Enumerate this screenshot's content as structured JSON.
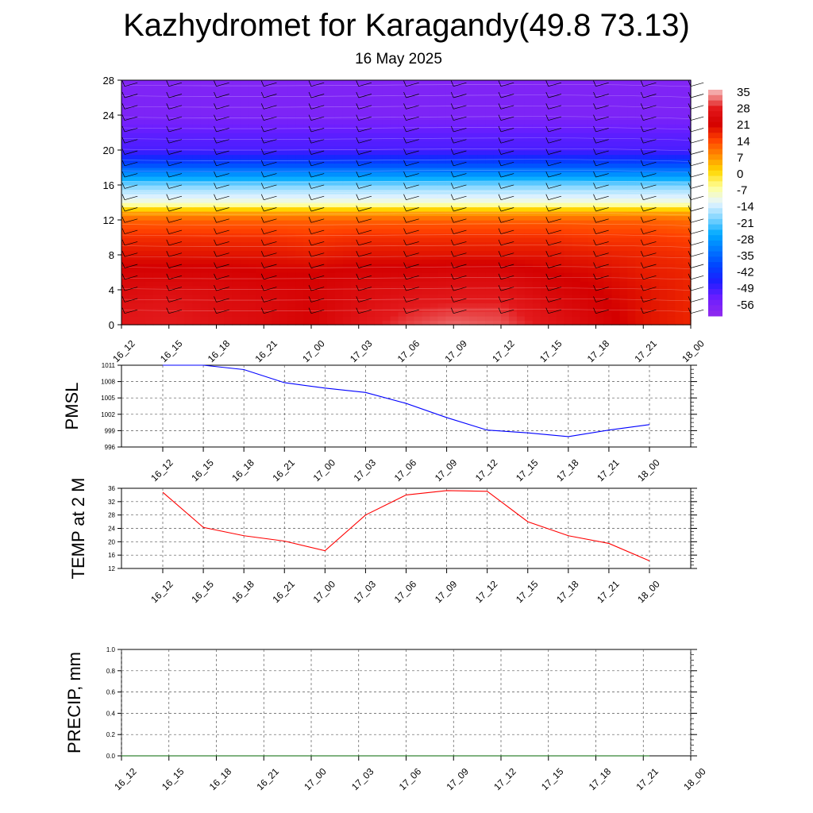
{
  "page": {
    "title": "Kazhydromet for Karagandy(49.8 73.13)",
    "subtitle": "16 May 2025"
  },
  "chart_data": [
    {
      "type": "heatmap",
      "ylim": [
        0,
        28
      ],
      "yticks": [
        0,
        4,
        8,
        12,
        16,
        20,
        24,
        28
      ],
      "x": [
        "16_12",
        "16_15",
        "16_18",
        "16_21",
        "17_00",
        "17_03",
        "17_06",
        "17_09",
        "17_12",
        "17_15",
        "17_18",
        "17_21",
        "18_00"
      ],
      "colorbar": {
        "labels": [
          "35",
          "28",
          "21",
          "14",
          "7",
          "0",
          "-7",
          "-14",
          "-21",
          "-28",
          "-35",
          "-42",
          "-49",
          "-56"
        ],
        "colors": [
          "#f4a8a8",
          "#e31a1c",
          "#d40000",
          "#ff4000",
          "#ff8c00",
          "#ffd700",
          "#ffff99",
          "#e6f5ff",
          "#7fd4ff",
          "#00aaff",
          "#0078ff",
          "#0044ff",
          "#1e1eff",
          "#6a1eff",
          "#8c28f0"
        ]
      },
      "levels": [
        0,
        2,
        4,
        6,
        8,
        10,
        12,
        13,
        14,
        16,
        18,
        20,
        22,
        24,
        26,
        28
      ],
      "values": [
        [
          30,
          29,
          27,
          25,
          22,
          19,
          14,
          7,
          -8,
          -18,
          -35,
          -50,
          -52,
          -57,
          -57,
          -58
        ],
        [
          31,
          30,
          28,
          25,
          22,
          19,
          14,
          7,
          -8,
          -18,
          -35,
          -50,
          -52,
          -57,
          -57,
          -58
        ],
        [
          29,
          28,
          27,
          25,
          22,
          19,
          14,
          7,
          -8,
          -18,
          -35,
          -50,
          -52,
          -57,
          -57,
          -58
        ],
        [
          27,
          27,
          26,
          24,
          22,
          19,
          14,
          7,
          -8,
          -18,
          -35,
          -50,
          -52,
          -57,
          -57,
          -58
        ],
        [
          25,
          25,
          25,
          24,
          21,
          18,
          14,
          7,
          -8,
          -18,
          -35,
          -50,
          -52,
          -57,
          -57,
          -58
        ],
        [
          30,
          28,
          27,
          25,
          22,
          19,
          14,
          7,
          -8,
          -18,
          -35,
          -50,
          -52,
          -57,
          -57,
          -58
        ],
        [
          33,
          31,
          28,
          25,
          22,
          19,
          14,
          7,
          -8,
          -18,
          -35,
          -50,
          -52,
          -57,
          -57,
          -58
        ],
        [
          35,
          32,
          29,
          26,
          22,
          19,
          14,
          7,
          -8,
          -18,
          -35,
          -50,
          -52,
          -57,
          -57,
          -58
        ],
        [
          34,
          32,
          29,
          26,
          22,
          19,
          14,
          7,
          -8,
          -18,
          -35,
          -50,
          -52,
          -57,
          -57,
          -58
        ],
        [
          30,
          28,
          26,
          24,
          22,
          19,
          14,
          7,
          -8,
          -18,
          -35,
          -50,
          -52,
          -57,
          -57,
          -58
        ],
        [
          26,
          25,
          24,
          23,
          21,
          18,
          14,
          7,
          -8,
          -18,
          -35,
          -50,
          -52,
          -57,
          -57,
          -58
        ],
        [
          22,
          22,
          22,
          21,
          20,
          18,
          14,
          7,
          -8,
          -18,
          -35,
          -50,
          -52,
          -57,
          -57,
          -58
        ],
        [
          20,
          20,
          20,
          20,
          19,
          17,
          13,
          7,
          -8,
          -18,
          -35,
          -50,
          -52,
          -57,
          -57,
          -58
        ]
      ]
    },
    {
      "type": "line",
      "ylabel": "PMSL",
      "ylim": [
        996,
        1011
      ],
      "yticks": [
        996,
        999,
        1002,
        1005,
        1008,
        1011
      ],
      "x": [
        "16_12",
        "16_15",
        "16_18",
        "16_21",
        "17_00",
        "17_03",
        "17_06",
        "17_09",
        "17_12",
        "17_15",
        "17_18",
        "17_21",
        "18_00"
      ],
      "series": [
        {
          "values": [
            1011,
            1011,
            1010.2,
            1007.8,
            1006.8,
            1006,
            1004,
            1001.4,
            999.1,
            998.6,
            997.9,
            999.1,
            1000.1
          ],
          "color": "#0000ff"
        }
      ]
    },
    {
      "type": "line",
      "ylabel": "TEMP at 2 M",
      "ylim": [
        12,
        36
      ],
      "yticks": [
        12,
        16,
        20,
        24,
        28,
        32,
        36
      ],
      "x": [
        "16_12",
        "16_15",
        "16_18",
        "16_21",
        "17_00",
        "17_03",
        "17_06",
        "17_09",
        "17_12",
        "17_15",
        "17_18",
        "17_21",
        "18_00"
      ],
      "series": [
        {
          "values": [
            34.8,
            24.3,
            21.8,
            20.2,
            17.3,
            28,
            34,
            35.3,
            35.1,
            26,
            21.8,
            19.5,
            14.3
          ],
          "color": "#ff0000"
        }
      ]
    },
    {
      "type": "line",
      "ylabel": "PRECIP, mm",
      "ylim": [
        0,
        1
      ],
      "yticks": [
        "0.0",
        "0.2",
        "0.4",
        "0.6",
        "0.8",
        "1.0"
      ],
      "x": [
        "16_12",
        "16_15",
        "16_18",
        "16_21",
        "17_00",
        "17_03",
        "17_06",
        "17_09",
        "17_12",
        "17_15",
        "17_18",
        "17_21",
        "18_00"
      ],
      "series": [
        {
          "values": [
            0,
            0,
            0,
            0,
            0,
            0,
            0,
            0,
            0,
            0,
            0,
            0,
            0
          ],
          "color": "#006400"
        }
      ]
    }
  ]
}
